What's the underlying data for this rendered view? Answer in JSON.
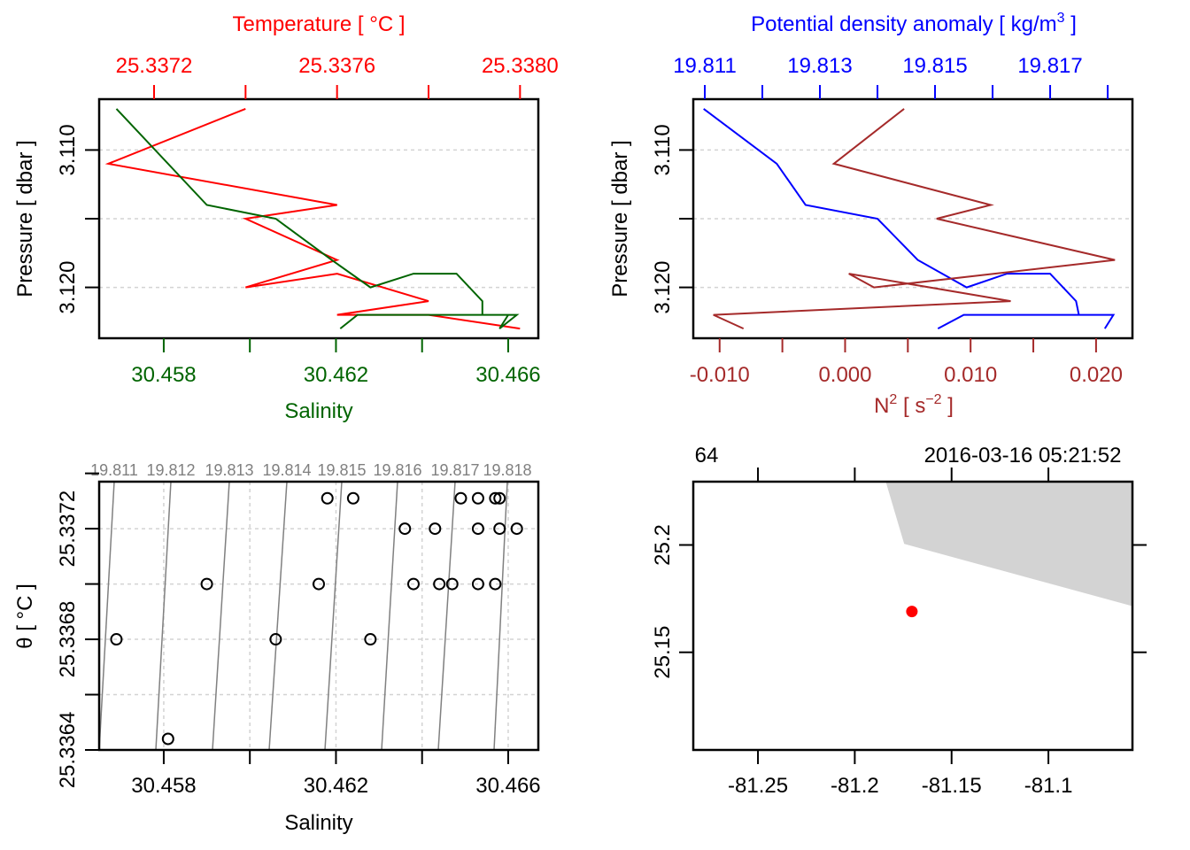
{
  "chart_data": [
    {
      "type": "line",
      "panel": "top-left",
      "title": "",
      "top_axis": {
        "label": "Temperature [ °C ]",
        "color": "#ff0000",
        "ticks": [
          25.3372,
          25.3374,
          25.3376,
          25.3378,
          25.338
        ],
        "tick_labels": [
          "25.3372",
          "",
          "25.3376",
          "",
          "25.3380"
        ],
        "range": [
          25.33708,
          25.33804
        ]
      },
      "bottom_axis": {
        "label": "Salinity",
        "color": "#006400",
        "ticks": [
          30.458,
          30.46,
          30.462,
          30.464,
          30.466
        ],
        "tick_labels": [
          "30.458",
          "",
          "30.462",
          "",
          "30.466"
        ],
        "range": [
          30.4565,
          30.4667
        ]
      },
      "y_axis": {
        "label": "Pressure [ dbar ]",
        "ticks": [
          3.11,
          3.115,
          3.12
        ],
        "tick_labels": [
          "3.110",
          "",
          "3.120"
        ],
        "range": [
          3.1237,
          3.1063
        ],
        "grid": true
      },
      "series": [
        {
          "name": "Temperature",
          "color": "#ff0000",
          "pressure": [
            3.107,
            3.111,
            3.114,
            3.115,
            3.118,
            3.12,
            3.119,
            3.121,
            3.122,
            3.122,
            3.123,
            3.123
          ],
          "values": [
            25.3374,
            25.3371,
            25.3376,
            25.3374,
            25.3376,
            25.3374,
            25.3376,
            25.3378,
            25.3376,
            25.3378,
            25.338,
            25.338
          ]
        },
        {
          "name": "Salinity",
          "color": "#006400",
          "pressure": [
            3.107,
            3.114,
            3.115,
            3.118,
            3.12,
            3.119,
            3.119,
            3.121,
            3.122,
            3.122,
            3.123,
            3.122,
            3.122,
            3.123
          ],
          "values": [
            30.4569,
            30.459,
            30.4606,
            30.4619,
            30.4628,
            30.4638,
            30.4648,
            30.4654,
            30.4654,
            30.4662,
            30.4658,
            30.466,
            30.4625,
            30.4621
          ]
        }
      ]
    },
    {
      "type": "line",
      "panel": "top-right",
      "top_axis": {
        "label_main": "Potential density anomaly [ kg/m",
        "label_sup": "3",
        "label_end": " ]",
        "color": "#0000ff",
        "ticks": [
          19.811,
          19.812,
          19.813,
          19.814,
          19.815,
          19.816,
          19.817,
          19.818
        ],
        "tick_labels": [
          "19.811",
          "",
          "19.813",
          "",
          "19.815",
          "",
          "19.817",
          ""
        ],
        "range": [
          19.8108,
          19.81843
        ]
      },
      "bottom_axis": {
        "label_main": "N",
        "label_sup": "2",
        "label_mid": " [ s",
        "label_sup2": "−2",
        "label_end": " ]",
        "color": "#a52a2a",
        "ticks": [
          -0.01,
          -0.005,
          0.0,
          0.005,
          0.01,
          0.015,
          0.02
        ],
        "tick_labels": [
          "-0.010",
          "",
          "0.000",
          "",
          "0.010",
          "",
          "0.020"
        ],
        "range": [
          -0.0121,
          0.0229
        ]
      },
      "y_axis": {
        "label": "Pressure [ dbar ]",
        "ticks": [
          3.11,
          3.115,
          3.12
        ],
        "tick_labels": [
          "3.110",
          "",
          "3.120"
        ],
        "range": [
          3.1237,
          3.1063
        ],
        "grid": true
      },
      "series": [
        {
          "name": "Potential density anomaly",
          "color": "#0000ff",
          "pressure": [
            3.107,
            3.111,
            3.114,
            3.115,
            3.118,
            3.12,
            3.119,
            3.119,
            3.121,
            3.122,
            3.122,
            3.123,
            3.122,
            3.122,
            3.123
          ],
          "values": [
            19.81098,
            19.81225,
            19.81275,
            19.814,
            19.8147,
            19.81555,
            19.81625,
            19.817,
            19.81745,
            19.8175,
            19.8181,
            19.81795,
            19.8181,
            19.8155,
            19.81505
          ]
        },
        {
          "name": "N2",
          "color": "#a52a2a",
          "pressure": [
            3.107,
            3.111,
            3.114,
            3.115,
            3.118,
            3.12,
            3.119,
            3.121,
            3.122,
            3.123
          ],
          "values": [
            0.0047,
            -0.0009,
            0.0116,
            0.0073,
            0.0215,
            0.0023,
            0.0003,
            0.0132,
            -0.0105,
            -0.0081
          ]
        }
      ]
    },
    {
      "type": "scatter",
      "panel": "bottom-left",
      "xlabel": "Salinity",
      "ylabel": "θ [ °C ]",
      "x_ticks": [
        30.458,
        30.46,
        30.462,
        30.464,
        30.466
      ],
      "x_tick_labels": [
        "30.458",
        "",
        "30.462",
        "",
        "30.466"
      ],
      "xlim": [
        30.4565,
        30.4667
      ],
      "y_ticks": [
        25.3364,
        25.3366,
        25.3368,
        25.337,
        25.3372,
        25.3374
      ],
      "y_tick_labels": [
        "25.3364",
        "",
        "25.3368",
        "",
        "25.3372",
        ""
      ],
      "ylim": [
        25.3364,
        25.33737
      ],
      "grid": true,
      "isopycnals": {
        "color": "#808080",
        "levels": [
          19.811,
          19.812,
          19.813,
          19.814,
          19.815,
          19.816,
          19.817,
          19.818
        ]
      },
      "points": [
        {
          "x": 30.4569,
          "y": 25.3368
        },
        {
          "x": 30.4581,
          "y": 25.33644
        },
        {
          "x": 30.459,
          "y": 25.337
        },
        {
          "x": 30.4606,
          "y": 25.3368
        },
        {
          "x": 30.4616,
          "y": 25.337
        },
        {
          "x": 30.4618,
          "y": 25.33731
        },
        {
          "x": 30.4624,
          "y": 25.33731
        },
        {
          "x": 30.4628,
          "y": 25.3368
        },
        {
          "x": 30.4636,
          "y": 25.3372
        },
        {
          "x": 30.4638,
          "y": 25.337
        },
        {
          "x": 30.4643,
          "y": 25.3372
        },
        {
          "x": 30.4644,
          "y": 25.337
        },
        {
          "x": 30.4647,
          "y": 25.337
        },
        {
          "x": 30.4649,
          "y": 25.33731
        },
        {
          "x": 30.4653,
          "y": 25.33731
        },
        {
          "x": 30.4653,
          "y": 25.3372
        },
        {
          "x": 30.4653,
          "y": 25.337
        },
        {
          "x": 30.4657,
          "y": 25.33731
        },
        {
          "x": 30.4658,
          "y": 25.33731
        },
        {
          "x": 30.4657,
          "y": 25.337
        },
        {
          "x": 30.4658,
          "y": 25.3372
        },
        {
          "x": 30.4662,
          "y": 25.3372
        }
      ]
    },
    {
      "type": "scatter",
      "panel": "bottom-right",
      "top_labels": [
        "64",
        "2016-03-16 05:21:52"
      ],
      "x_ticks": [
        -81.25,
        -81.2,
        -81.15,
        -81.1
      ],
      "x_tick_labels": [
        "-81.25",
        "-81.2",
        "-81.15",
        "-81.1"
      ],
      "xlim": [
        -81.2834,
        -81.0566
      ],
      "y_ticks": [
        25.15,
        25.2
      ],
      "y_tick_labels": [
        "25.15",
        "25.2"
      ],
      "ylim": [
        25.1045,
        25.2295
      ],
      "land_color": "#d3d3d3",
      "land_polygon": [
        [
          -81.184,
          25.2295
        ],
        [
          -81.0566,
          25.2295
        ],
        [
          -81.0566,
          25.1715
        ],
        [
          -81.1745,
          25.2005
        ]
      ],
      "station": {
        "lon": -81.1705,
        "lat": 25.169,
        "color": "#ff0000"
      }
    }
  ]
}
